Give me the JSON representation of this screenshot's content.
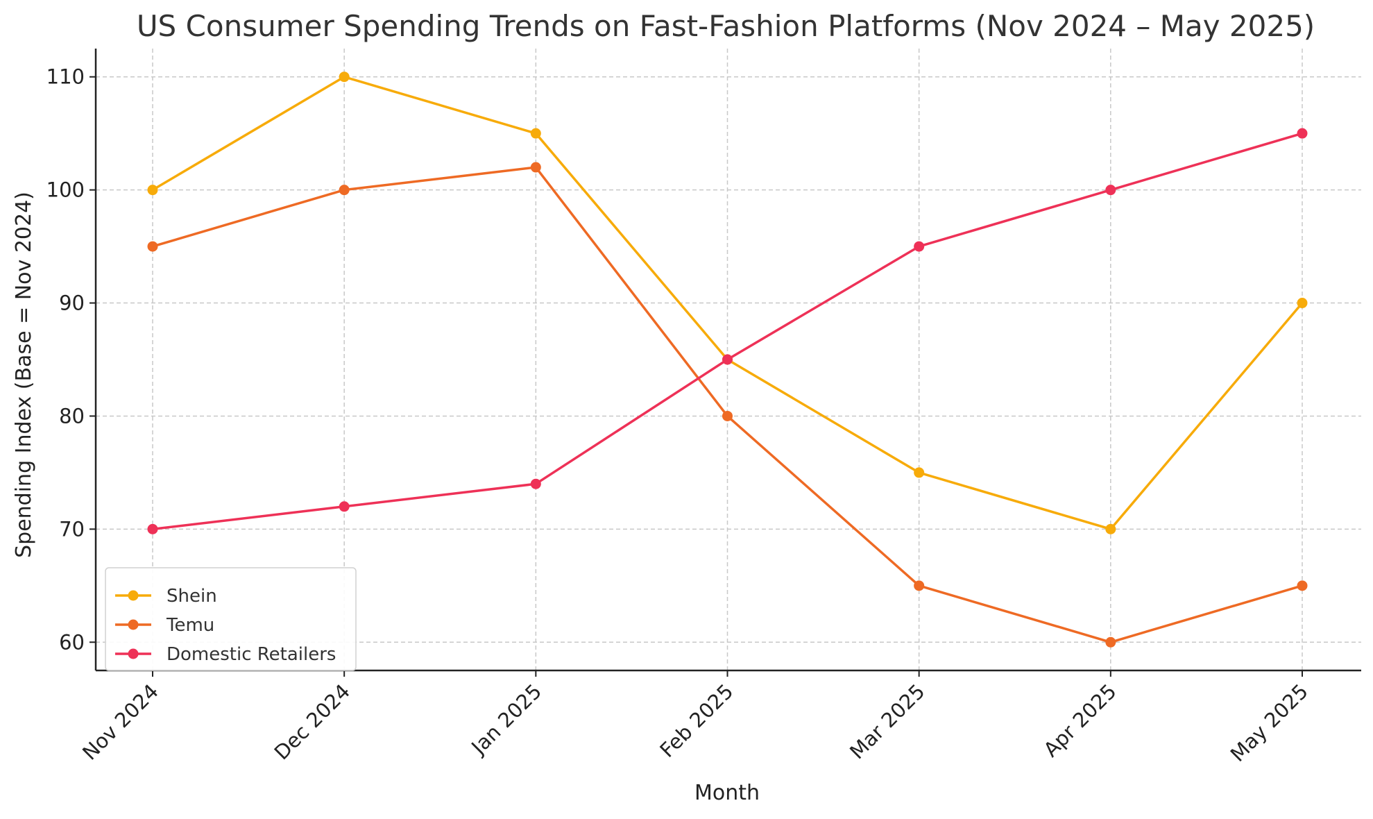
{
  "chart_data": {
    "type": "line",
    "title": "US Consumer Spending Trends on Fast-Fashion Platforms (Nov 2024 – May 2025)",
    "xlabel": "Month",
    "ylabel": "Spending Index (Base = Nov 2024)",
    "categories": [
      "Nov 2024",
      "Dec 2024",
      "Jan 2025",
      "Feb 2025",
      "Mar 2025",
      "Apr 2025",
      "May 2025"
    ],
    "ylim": [
      57.5,
      112.5
    ],
    "yticks": [
      60,
      70,
      80,
      90,
      100,
      110
    ],
    "grid": true,
    "legend_position": "lower-left",
    "series": [
      {
        "name": "Shein",
        "color": "#f7ab0a",
        "values": [
          100,
          110,
          105,
          85,
          75,
          70,
          90
        ]
      },
      {
        "name": "Temu",
        "color": "#ee6a24",
        "values": [
          95,
          100,
          102,
          80,
          65,
          60,
          65
        ]
      },
      {
        "name": "Domestic Retailers",
        "color": "#ee3157",
        "values": [
          70,
          72,
          74,
          85,
          95,
          100,
          105
        ]
      }
    ]
  }
}
